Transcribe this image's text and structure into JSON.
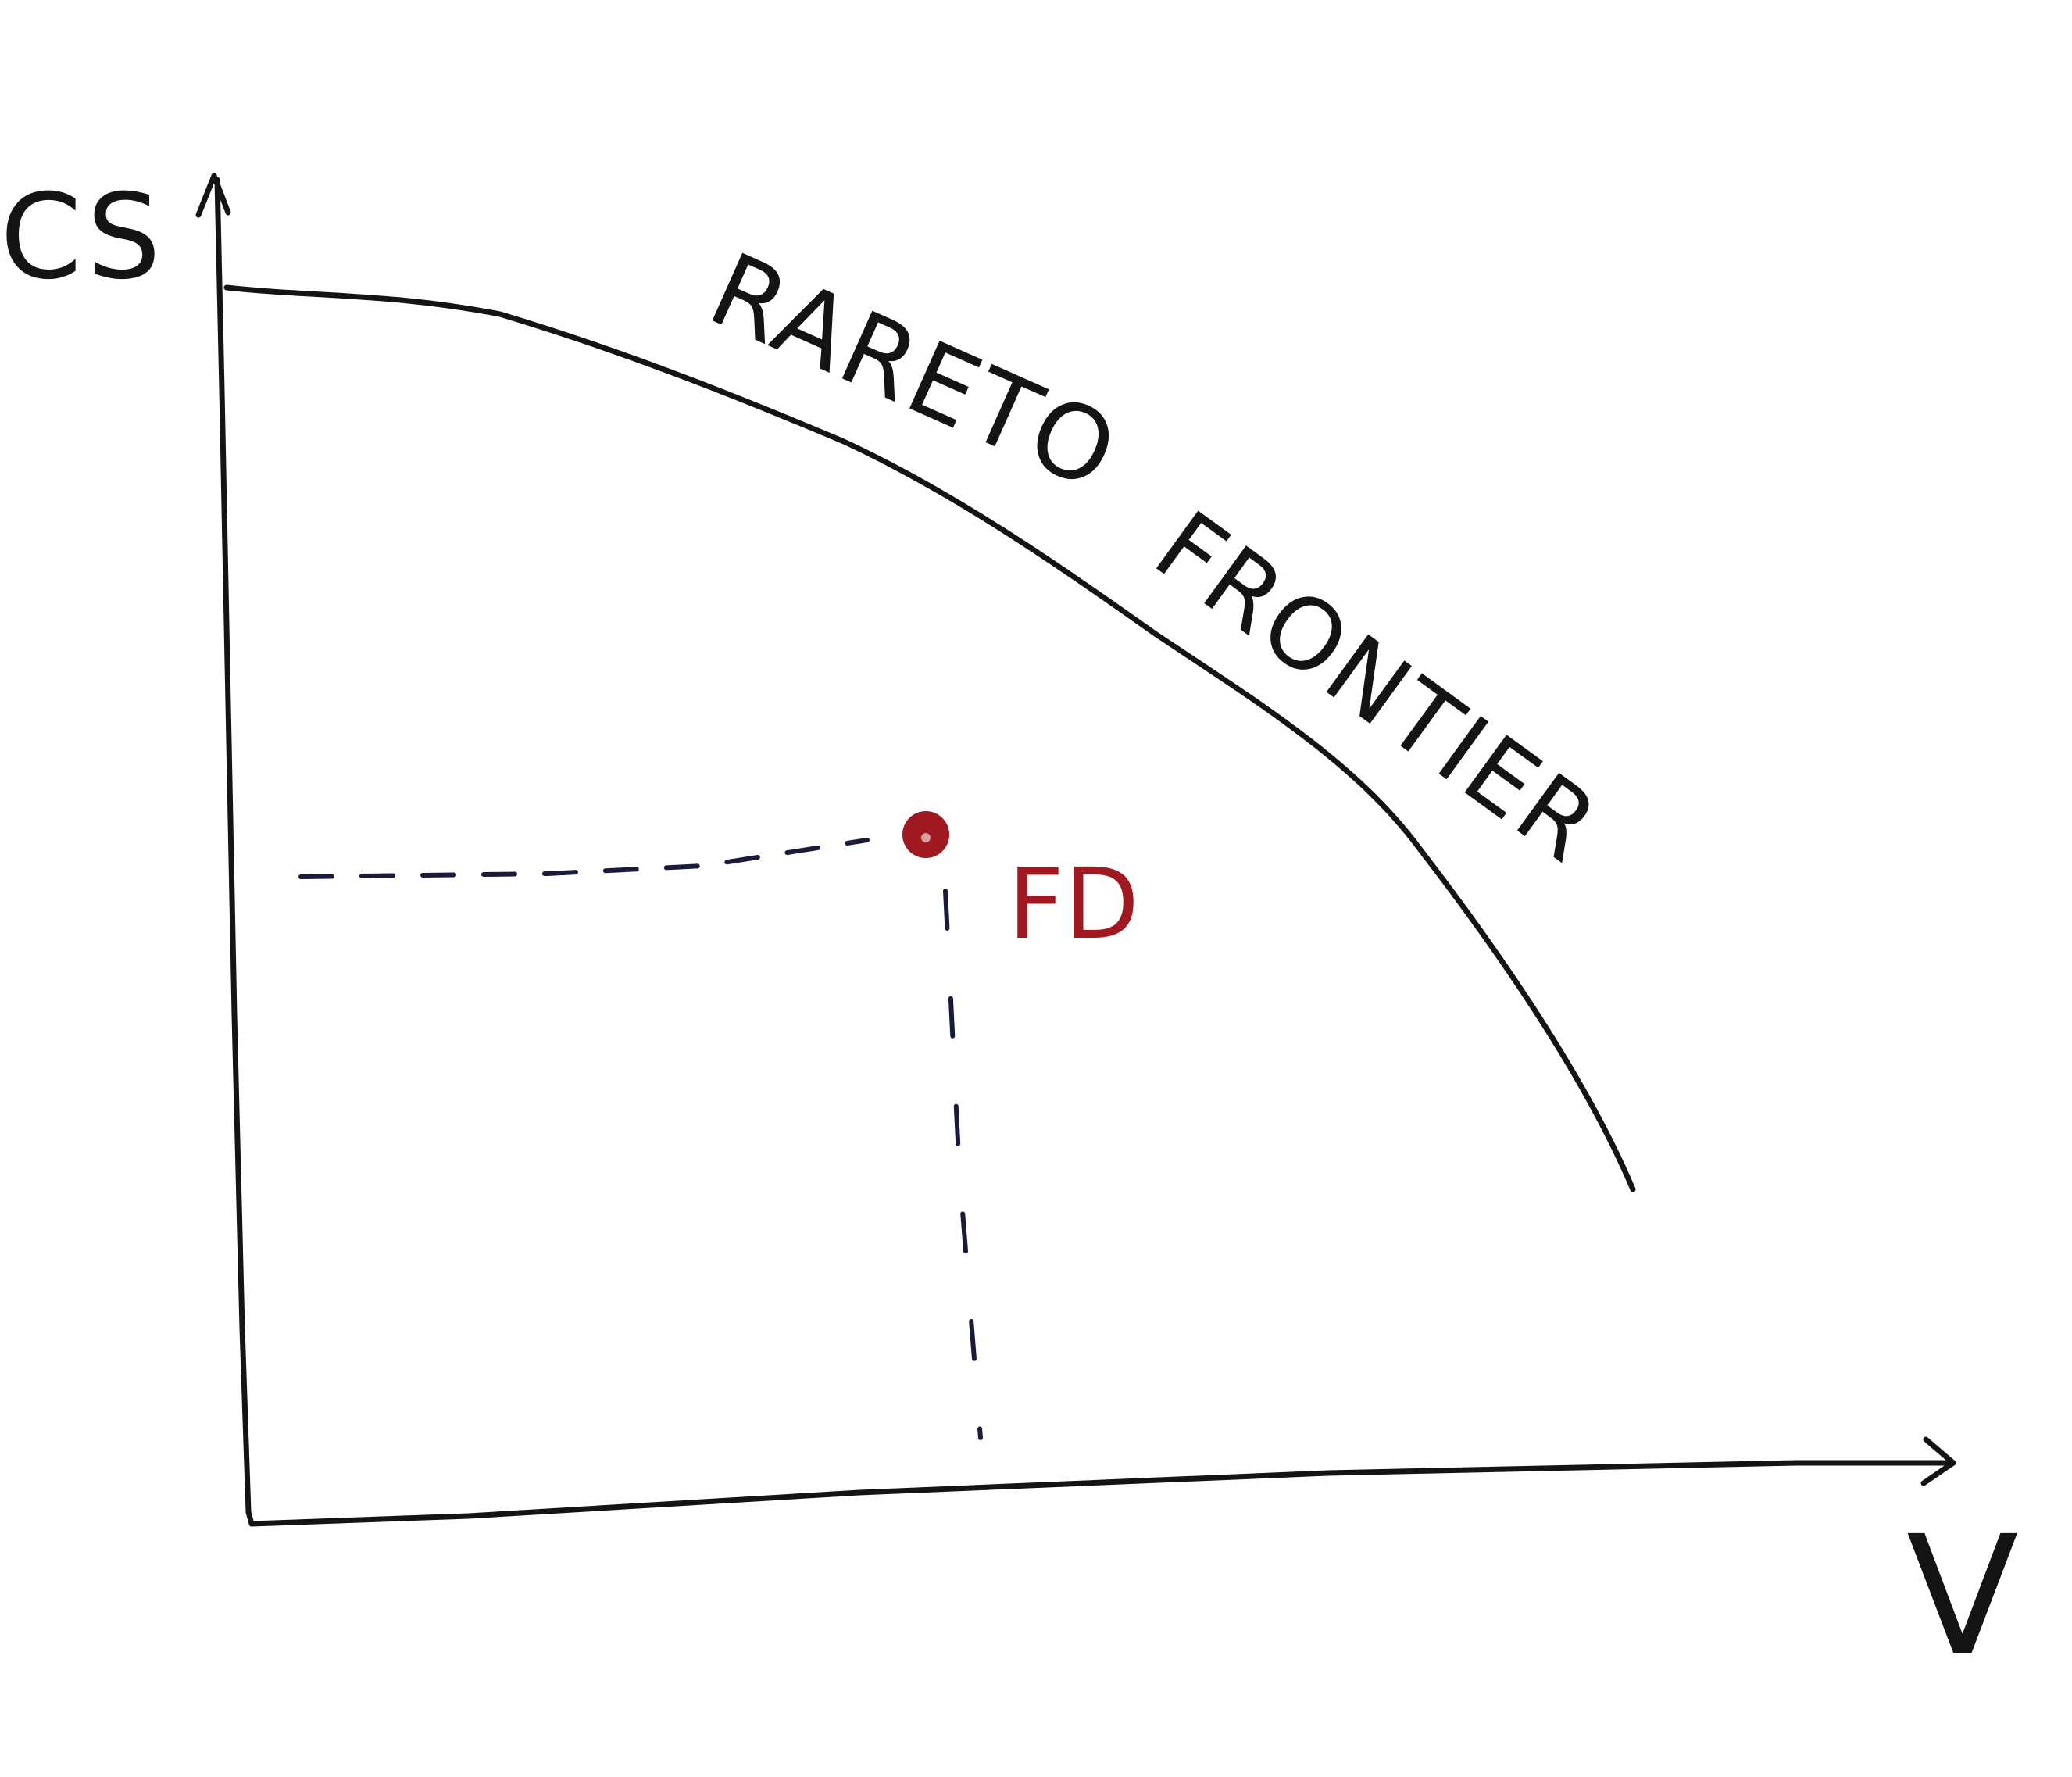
{
  "labels": {
    "y_axis": "CS",
    "x_axis": "V",
    "frontier_word_1": "RARETO",
    "frontier_word_2": "FRONTIER",
    "point": "FD"
  },
  "colors": {
    "ink": "#141414",
    "dash": "#1a1a3a",
    "point": "#a01820"
  }
}
